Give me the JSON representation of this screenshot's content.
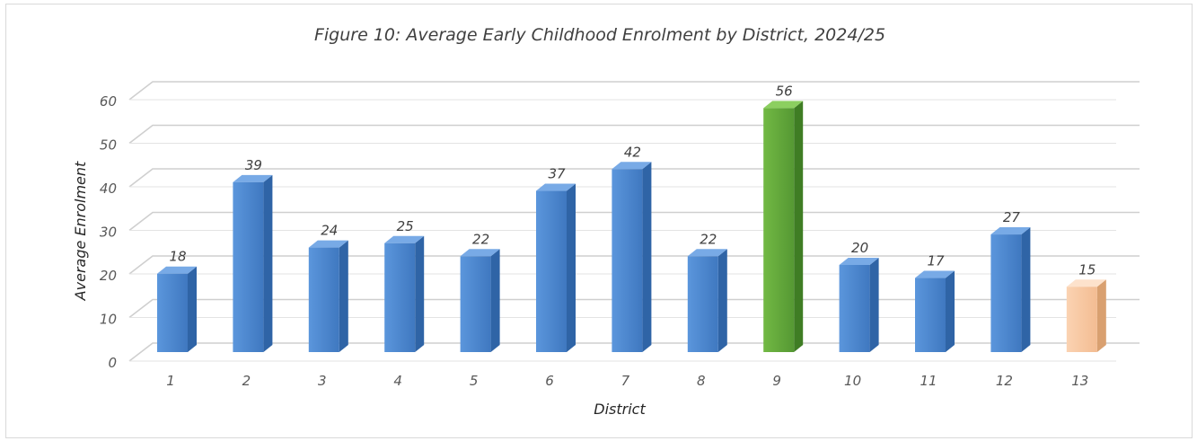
{
  "chart_data": {
    "type": "bar",
    "title": "Figure 10: Average Early Childhood Enrolment by District, 2024/25",
    "xlabel": "District",
    "ylabel": "Average Enrolment",
    "categories": [
      "1",
      "2",
      "3",
      "4",
      "5",
      "6",
      "7",
      "8",
      "9",
      "10",
      "11",
      "12",
      "13"
    ],
    "values": [
      18,
      39,
      24,
      25,
      22,
      37,
      42,
      22,
      56,
      20,
      17,
      27,
      15
    ],
    "yticks": [
      "0",
      "10",
      "20",
      "30",
      "40",
      "50",
      "60"
    ],
    "ylim": [
      0,
      60
    ],
    "grid": true,
    "bar_style": "3d-column",
    "colors": {
      "default": "#4a86d0",
      "highlight_max": "#62a73b",
      "highlight_last": "#f8c7a0"
    },
    "bar_color_keys": [
      "default",
      "default",
      "default",
      "default",
      "default",
      "default",
      "default",
      "default",
      "highlight_max",
      "default",
      "default",
      "default",
      "highlight_last"
    ]
  }
}
